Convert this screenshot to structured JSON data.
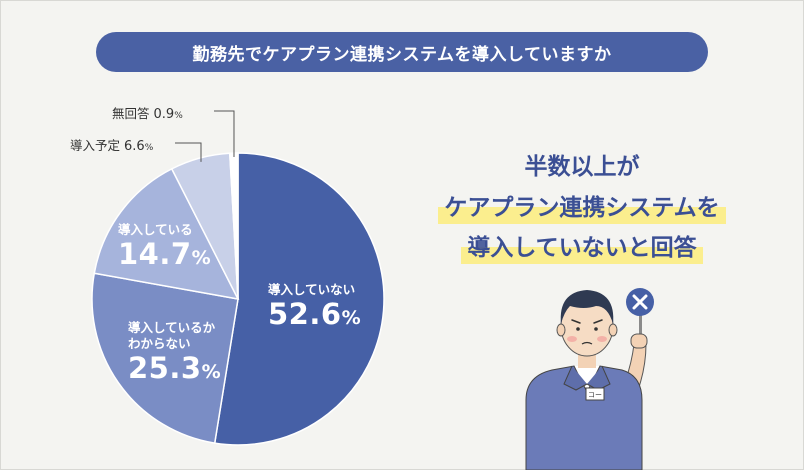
{
  "title": "勤務先でケアプラン連携システムを導入していますか",
  "message": {
    "line1": "半数以上が",
    "line2": "ケアプラン連携システムを",
    "line3": "導入していないと回答"
  },
  "colors": {
    "title_bg": "#4a61a4",
    "slice_1": "#4660a6",
    "slice_2": "#7a8dc5",
    "slice_3": "#a6b4dc",
    "slice_4": "#c8d0e8",
    "slice_5": "#ffffff",
    "highlight": "#fbee8e",
    "message_text": "#3b4f94"
  },
  "chart_data": {
    "type": "pie",
    "start": "12 o'clock",
    "direction": "clockwise",
    "slices": [
      {
        "label": "導入していない",
        "value": 52.6,
        "pct_text": "52.6",
        "unit": "%"
      },
      {
        "label": "導入しているかわからない",
        "label_lines": [
          "導入しているか",
          "わからない"
        ],
        "value": 25.3,
        "pct_text": "25.3",
        "unit": "%"
      },
      {
        "label": "導入している",
        "value": 14.7,
        "pct_text": "14.7",
        "unit": "%"
      },
      {
        "label": "導入予定",
        "value": 6.6,
        "pct_text": "6.6",
        "unit": "%"
      },
      {
        "label": "無回答",
        "value": 0.9,
        "pct_text": "0.9",
        "unit": "%"
      }
    ]
  },
  "illustration": {
    "icon": "cross-sign-icon",
    "badge_text": "コー"
  }
}
